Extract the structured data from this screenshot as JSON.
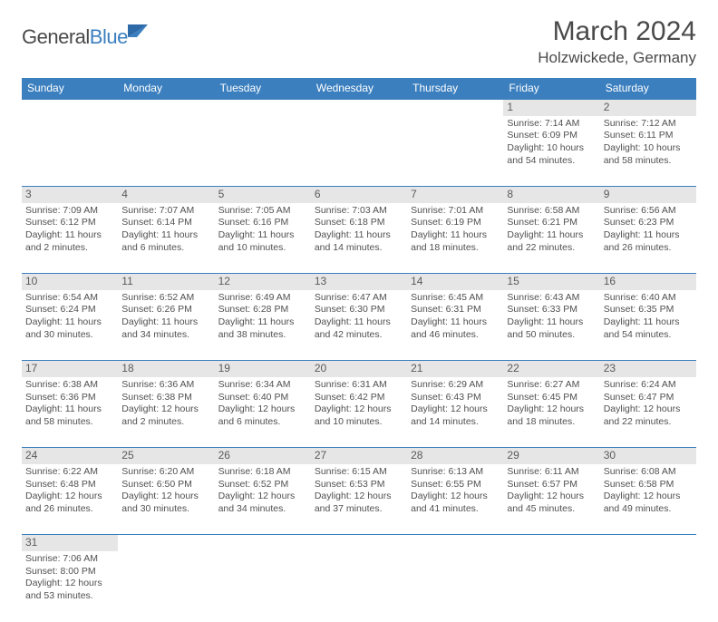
{
  "logo": {
    "word1": "General",
    "word2": "Blue"
  },
  "title": "March 2024",
  "location": "Holzwickede, Germany",
  "colors": {
    "header_bg": "#3b7fbf",
    "header_text": "#ffffff",
    "daynum_bg": "#e6e6e6",
    "text": "#4a4a4a",
    "rule": "#3b7fbf"
  },
  "weekdays": [
    "Sunday",
    "Monday",
    "Tuesday",
    "Wednesday",
    "Thursday",
    "Friday",
    "Saturday"
  ],
  "weeks": [
    [
      null,
      null,
      null,
      null,
      null,
      {
        "n": "1",
        "sr": "Sunrise: 7:14 AM",
        "ss": "Sunset: 6:09 PM",
        "dl": "Daylight: 10 hours and 54 minutes."
      },
      {
        "n": "2",
        "sr": "Sunrise: 7:12 AM",
        "ss": "Sunset: 6:11 PM",
        "dl": "Daylight: 10 hours and 58 minutes."
      }
    ],
    [
      {
        "n": "3",
        "sr": "Sunrise: 7:09 AM",
        "ss": "Sunset: 6:12 PM",
        "dl": "Daylight: 11 hours and 2 minutes."
      },
      {
        "n": "4",
        "sr": "Sunrise: 7:07 AM",
        "ss": "Sunset: 6:14 PM",
        "dl": "Daylight: 11 hours and 6 minutes."
      },
      {
        "n": "5",
        "sr": "Sunrise: 7:05 AM",
        "ss": "Sunset: 6:16 PM",
        "dl": "Daylight: 11 hours and 10 minutes."
      },
      {
        "n": "6",
        "sr": "Sunrise: 7:03 AM",
        "ss": "Sunset: 6:18 PM",
        "dl": "Daylight: 11 hours and 14 minutes."
      },
      {
        "n": "7",
        "sr": "Sunrise: 7:01 AM",
        "ss": "Sunset: 6:19 PM",
        "dl": "Daylight: 11 hours and 18 minutes."
      },
      {
        "n": "8",
        "sr": "Sunrise: 6:58 AM",
        "ss": "Sunset: 6:21 PM",
        "dl": "Daylight: 11 hours and 22 minutes."
      },
      {
        "n": "9",
        "sr": "Sunrise: 6:56 AM",
        "ss": "Sunset: 6:23 PM",
        "dl": "Daylight: 11 hours and 26 minutes."
      }
    ],
    [
      {
        "n": "10",
        "sr": "Sunrise: 6:54 AM",
        "ss": "Sunset: 6:24 PM",
        "dl": "Daylight: 11 hours and 30 minutes."
      },
      {
        "n": "11",
        "sr": "Sunrise: 6:52 AM",
        "ss": "Sunset: 6:26 PM",
        "dl": "Daylight: 11 hours and 34 minutes."
      },
      {
        "n": "12",
        "sr": "Sunrise: 6:49 AM",
        "ss": "Sunset: 6:28 PM",
        "dl": "Daylight: 11 hours and 38 minutes."
      },
      {
        "n": "13",
        "sr": "Sunrise: 6:47 AM",
        "ss": "Sunset: 6:30 PM",
        "dl": "Daylight: 11 hours and 42 minutes."
      },
      {
        "n": "14",
        "sr": "Sunrise: 6:45 AM",
        "ss": "Sunset: 6:31 PM",
        "dl": "Daylight: 11 hours and 46 minutes."
      },
      {
        "n": "15",
        "sr": "Sunrise: 6:43 AM",
        "ss": "Sunset: 6:33 PM",
        "dl": "Daylight: 11 hours and 50 minutes."
      },
      {
        "n": "16",
        "sr": "Sunrise: 6:40 AM",
        "ss": "Sunset: 6:35 PM",
        "dl": "Daylight: 11 hours and 54 minutes."
      }
    ],
    [
      {
        "n": "17",
        "sr": "Sunrise: 6:38 AM",
        "ss": "Sunset: 6:36 PM",
        "dl": "Daylight: 11 hours and 58 minutes."
      },
      {
        "n": "18",
        "sr": "Sunrise: 6:36 AM",
        "ss": "Sunset: 6:38 PM",
        "dl": "Daylight: 12 hours and 2 minutes."
      },
      {
        "n": "19",
        "sr": "Sunrise: 6:34 AM",
        "ss": "Sunset: 6:40 PM",
        "dl": "Daylight: 12 hours and 6 minutes."
      },
      {
        "n": "20",
        "sr": "Sunrise: 6:31 AM",
        "ss": "Sunset: 6:42 PM",
        "dl": "Daylight: 12 hours and 10 minutes."
      },
      {
        "n": "21",
        "sr": "Sunrise: 6:29 AM",
        "ss": "Sunset: 6:43 PM",
        "dl": "Daylight: 12 hours and 14 minutes."
      },
      {
        "n": "22",
        "sr": "Sunrise: 6:27 AM",
        "ss": "Sunset: 6:45 PM",
        "dl": "Daylight: 12 hours and 18 minutes."
      },
      {
        "n": "23",
        "sr": "Sunrise: 6:24 AM",
        "ss": "Sunset: 6:47 PM",
        "dl": "Daylight: 12 hours and 22 minutes."
      }
    ],
    [
      {
        "n": "24",
        "sr": "Sunrise: 6:22 AM",
        "ss": "Sunset: 6:48 PM",
        "dl": "Daylight: 12 hours and 26 minutes."
      },
      {
        "n": "25",
        "sr": "Sunrise: 6:20 AM",
        "ss": "Sunset: 6:50 PM",
        "dl": "Daylight: 12 hours and 30 minutes."
      },
      {
        "n": "26",
        "sr": "Sunrise: 6:18 AM",
        "ss": "Sunset: 6:52 PM",
        "dl": "Daylight: 12 hours and 34 minutes."
      },
      {
        "n": "27",
        "sr": "Sunrise: 6:15 AM",
        "ss": "Sunset: 6:53 PM",
        "dl": "Daylight: 12 hours and 37 minutes."
      },
      {
        "n": "28",
        "sr": "Sunrise: 6:13 AM",
        "ss": "Sunset: 6:55 PM",
        "dl": "Daylight: 12 hours and 41 minutes."
      },
      {
        "n": "29",
        "sr": "Sunrise: 6:11 AM",
        "ss": "Sunset: 6:57 PM",
        "dl": "Daylight: 12 hours and 45 minutes."
      },
      {
        "n": "30",
        "sr": "Sunrise: 6:08 AM",
        "ss": "Sunset: 6:58 PM",
        "dl": "Daylight: 12 hours and 49 minutes."
      }
    ],
    [
      {
        "n": "31",
        "sr": "Sunrise: 7:06 AM",
        "ss": "Sunset: 8:00 PM",
        "dl": "Daylight: 12 hours and 53 minutes."
      },
      null,
      null,
      null,
      null,
      null,
      null
    ]
  ]
}
